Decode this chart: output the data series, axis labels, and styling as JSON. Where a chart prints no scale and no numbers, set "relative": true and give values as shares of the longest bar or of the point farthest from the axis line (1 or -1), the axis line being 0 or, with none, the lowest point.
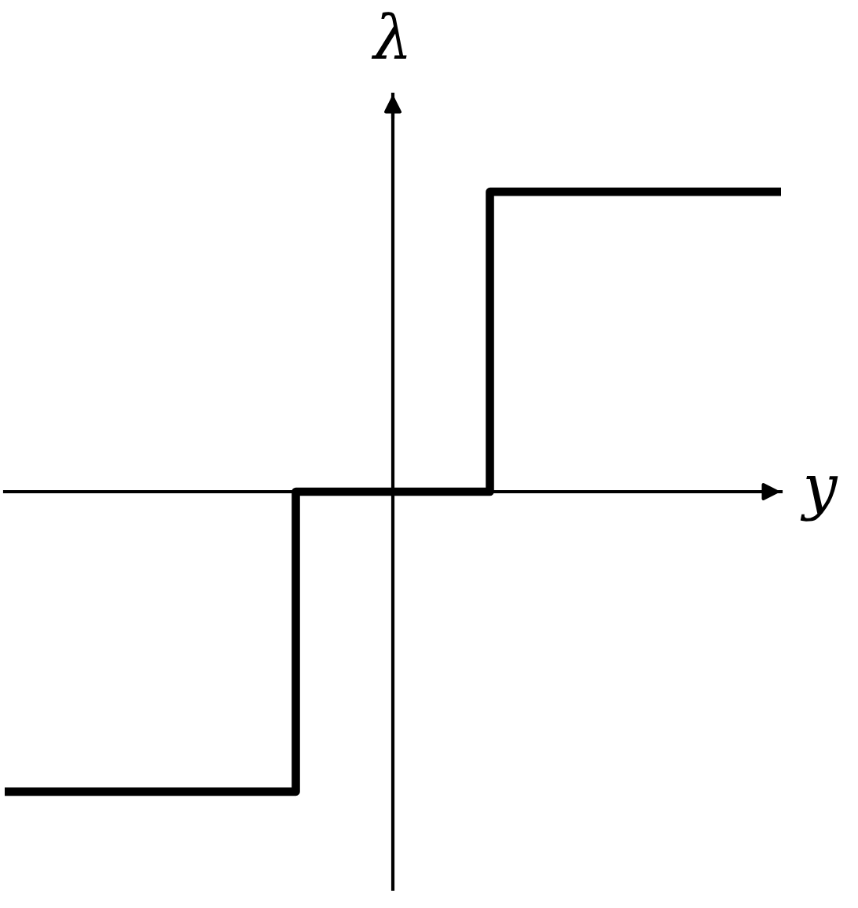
{
  "chart_data": {
    "type": "step",
    "xlabel": "y",
    "ylabel": "λ",
    "categories": [
      null,
      null,
      null,
      null,
      null,
      null,
      null,
      null,
      null
    ],
    "values": [
      -1,
      -1,
      -1,
      0,
      0,
      1,
      1,
      1,
      1
    ],
    "relative": true,
    "color": "#000000",
    "line_style": "solid",
    "marker": "none"
  }
}
